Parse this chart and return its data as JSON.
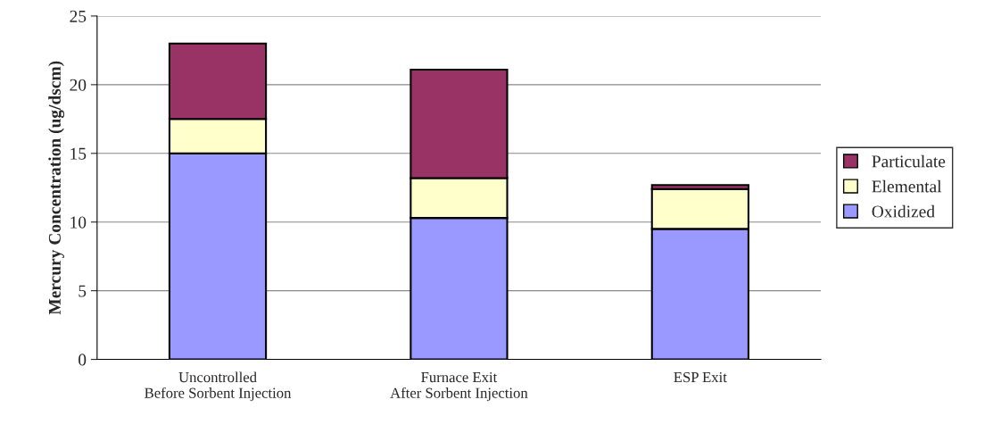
{
  "chart_data": {
    "type": "bar",
    "stacked": true,
    "ylabel": "Mercury Concentration (ug/dscm)",
    "categories": [
      "Uncontrolled\nBefore Sorbent Injection",
      "Furnace Exit\nAfter Sorbent Injection",
      "ESP Exit"
    ],
    "series": [
      {
        "name": "Oxidized",
        "color": "#9999ff",
        "values": [
          15.0,
          10.3,
          9.5
        ]
      },
      {
        "name": "Elemental",
        "color": "#ffffcc",
        "values": [
          2.5,
          2.9,
          2.9
        ]
      },
      {
        "name": "Particulate",
        "color": "#993366",
        "values": [
          5.5,
          7.9,
          0.3
        ]
      }
    ],
    "ylim": [
      0,
      25
    ],
    "yticks": [
      0,
      5,
      10,
      15,
      20,
      25
    ],
    "grid": "y",
    "legend": "right"
  }
}
